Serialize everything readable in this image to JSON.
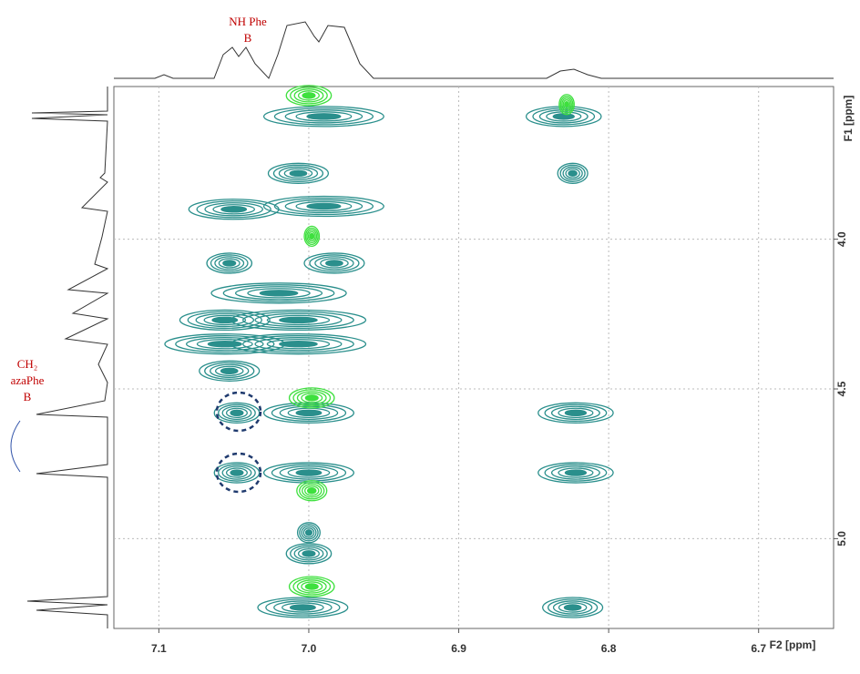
{
  "chart_data": {
    "type": "contour",
    "x_label": "F2 [ppm]",
    "y_label": "F1 [ppm]",
    "xlim": [
      7.13,
      6.65
    ],
    "ylim": [
      3.49,
      5.3
    ],
    "xticks": [
      7.1,
      {
        "value": 7.0,
        "label": "7.0"
      },
      6.9,
      6.8,
      6.7
    ],
    "yticks": [
      {
        "value": 4,
        "label": "4.0"
      },
      {
        "value": 4.5,
        "label": "4.5"
      },
      {
        "value": 5,
        "label": "5.0"
      }
    ],
    "grid": true,
    "annotations": [
      {
        "lines": [
          "NH  Phe",
          "B"
        ]
      },
      {
        "lines": [
          "CH₂",
          "azaPhe",
          "B"
        ]
      }
    ],
    "series": [
      {
        "color": "#2a8f8c",
        "x": [
          6.99,
          6.83,
          7.007,
          6.824,
          7.05,
          6.99,
          7.053,
          6.983,
          7.02,
          7.056,
          7.007,
          7.056,
          7.007,
          7.053,
          7.048,
          7.0,
          6.822,
          7.048,
          7.0,
          6.822,
          7.004,
          6.824,
          7.0,
          7.0
        ],
        "y": [
          3.59,
          3.59,
          3.78,
          3.78,
          3.9,
          3.89,
          4.08,
          4.08,
          4.18,
          4.27,
          4.27,
          4.35,
          4.35,
          4.44,
          4.58,
          4.58,
          4.58,
          4.78,
          4.78,
          4.78,
          5.23,
          5.23,
          5.05,
          4.98
        ],
        "x_width": [
          0.08,
          0.05,
          0.04,
          0.02,
          0.06,
          0.08,
          0.03,
          0.04,
          0.09,
          0.06,
          0.09,
          0.08,
          0.09,
          0.04,
          0.03,
          0.06,
          0.05,
          0.03,
          0.06,
          0.05,
          0.06,
          0.04,
          0.03,
          0.015
        ]
      },
      {
        "color": "#3ee03e",
        "x": [
          7.0,
          6.998,
          6.998,
          6.998,
          6.828,
          6.998
        ],
        "y": [
          3.52,
          4.53,
          5.16,
          4.84,
          3.55,
          3.99
        ],
        "x_width": [
          0.03,
          0.03,
          0.03,
          0.02,
          0.01,
          0.01
        ]
      }
    ]
  }
}
